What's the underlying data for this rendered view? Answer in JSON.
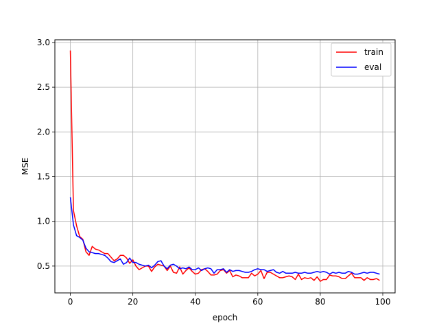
{
  "chart_data": {
    "type": "line",
    "title": "",
    "xlabel": "epoch",
    "ylabel": "MSE",
    "xlim": [
      -4.95,
      103.95
    ],
    "ylim": [
      0.2,
      3.03
    ],
    "xticks": [
      0,
      20,
      40,
      60,
      80,
      100
    ],
    "yticks": [
      0.5,
      1.0,
      1.5,
      2.0,
      2.5,
      3.0
    ],
    "xtick_labels": [
      "0",
      "20",
      "40",
      "60",
      "80",
      "100"
    ],
    "ytick_labels": [
      "0.5",
      "1.0",
      "1.5",
      "2.0",
      "2.5",
      "3.0"
    ],
    "grid": true,
    "legend": "top-right",
    "series": [
      {
        "name": "train",
        "color": "#ff0000",
        "values": [
          2.91,
          1.12,
          0.95,
          0.83,
          0.8,
          0.66,
          0.62,
          0.72,
          0.69,
          0.68,
          0.66,
          0.64,
          0.64,
          0.6,
          0.56,
          0.58,
          0.62,
          0.62,
          0.59,
          0.53,
          0.57,
          0.5,
          0.46,
          0.48,
          0.5,
          0.5,
          0.44,
          0.49,
          0.52,
          0.51,
          0.5,
          0.45,
          0.5,
          0.43,
          0.42,
          0.49,
          0.41,
          0.45,
          0.48,
          0.44,
          0.41,
          0.42,
          0.46,
          0.47,
          0.44,
          0.4,
          0.4,
          0.41,
          0.45,
          0.46,
          0.42,
          0.45,
          0.38,
          0.4,
          0.39,
          0.37,
          0.37,
          0.37,
          0.42,
          0.39,
          0.41,
          0.45,
          0.36,
          0.43,
          0.43,
          0.41,
          0.39,
          0.37,
          0.37,
          0.38,
          0.39,
          0.38,
          0.35,
          0.41,
          0.35,
          0.37,
          0.36,
          0.37,
          0.34,
          0.38,
          0.33,
          0.35,
          0.35,
          0.4,
          0.39,
          0.39,
          0.38,
          0.36,
          0.36,
          0.39,
          0.42,
          0.37,
          0.37,
          0.37,
          0.34,
          0.37,
          0.35,
          0.35,
          0.36,
          0.34
        ]
      },
      {
        "name": "eval",
        "color": "#0000ff",
        "values": [
          1.27,
          0.96,
          0.84,
          0.82,
          0.79,
          0.7,
          0.66,
          0.65,
          0.64,
          0.64,
          0.63,
          0.62,
          0.59,
          0.55,
          0.54,
          0.56,
          0.58,
          0.52,
          0.54,
          0.59,
          0.54,
          0.54,
          0.52,
          0.51,
          0.5,
          0.51,
          0.48,
          0.51,
          0.55,
          0.56,
          0.5,
          0.47,
          0.51,
          0.52,
          0.5,
          0.47,
          0.48,
          0.47,
          0.49,
          0.46,
          0.46,
          0.48,
          0.45,
          0.47,
          0.48,
          0.47,
          0.42,
          0.46,
          0.46,
          0.47,
          0.43,
          0.46,
          0.44,
          0.45,
          0.45,
          0.44,
          0.43,
          0.43,
          0.44,
          0.46,
          0.47,
          0.46,
          0.46,
          0.44,
          0.45,
          0.46,
          0.43,
          0.42,
          0.44,
          0.42,
          0.42,
          0.42,
          0.43,
          0.42,
          0.42,
          0.43,
          0.42,
          0.42,
          0.43,
          0.44,
          0.43,
          0.44,
          0.43,
          0.41,
          0.43,
          0.42,
          0.43,
          0.42,
          0.42,
          0.44,
          0.43,
          0.41,
          0.41,
          0.42,
          0.43,
          0.42,
          0.43,
          0.43,
          0.42,
          0.41
        ]
      }
    ]
  }
}
